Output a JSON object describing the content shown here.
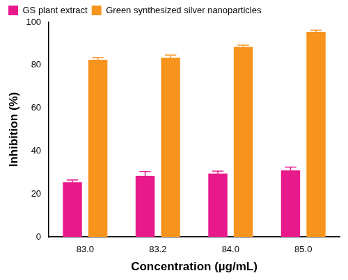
{
  "chart_data": {
    "type": "bar",
    "x_label": "Concentration (µg/mL)",
    "y_label": "Inhibition (%)",
    "categories": [
      "83.0",
      "83.2",
      "84.0",
      "85.0"
    ],
    "series": [
      {
        "name": "GS plant extract",
        "color": "#e8198b",
        "values": [
          25.5,
          28.5,
          29.5,
          31
        ],
        "errors": [
          1,
          2,
          1.2,
          1.5
        ]
      },
      {
        "name": "Green synthesized silver nanoparticles",
        "color": "#f7941d",
        "values": [
          82.5,
          83.5,
          88.5,
          95.5
        ],
        "errors": [
          1,
          1.2,
          0.8,
          0.8
        ]
      }
    ],
    "ylim": [
      0,
      100
    ],
    "yticks": [
      0,
      20,
      40,
      60,
      80,
      100
    ],
    "grid": false,
    "legend": "top-left"
  }
}
